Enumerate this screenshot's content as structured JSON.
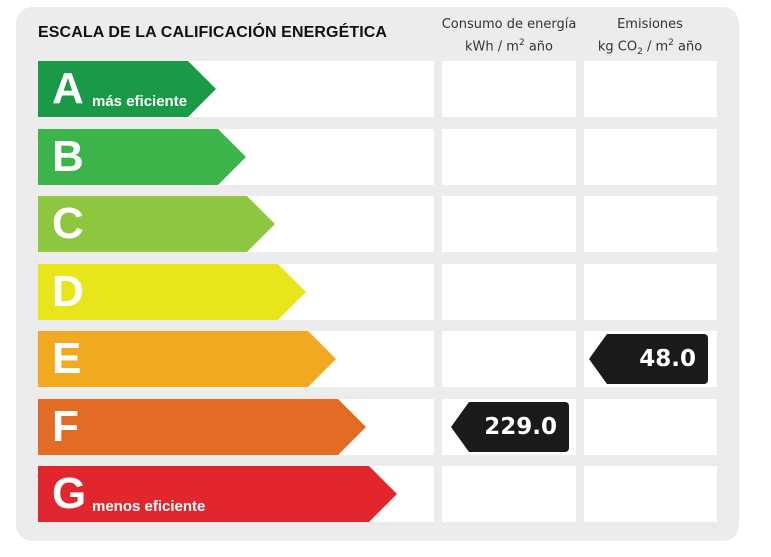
{
  "title": "ESCALA DE LA CALIFICACIÓN ENERGÉTICA",
  "columns": {
    "consumo": {
      "line1": "Consumo de energía",
      "line2_pre": "kWh / m",
      "line2_sup": "2",
      "line2_post": " año"
    },
    "emisiones": {
      "line1": "Emisiones",
      "line2_pre": "kg CO",
      "line2_sub": "2",
      "line2_mid": " / m",
      "line2_sup": "2",
      "line2_post": " año"
    }
  },
  "ratings": [
    {
      "letter": "A",
      "label": "más eficiente",
      "color": "#1a9a47"
    },
    {
      "letter": "B",
      "label": "",
      "color": "#3bb54a"
    },
    {
      "letter": "C",
      "label": "",
      "color": "#8dc63f"
    },
    {
      "letter": "D",
      "label": "",
      "color": "#e8e51a"
    },
    {
      "letter": "E",
      "label": "",
      "color": "#f2a922"
    },
    {
      "letter": "F",
      "label": "",
      "color": "#e36c25"
    },
    {
      "letter": "G",
      "label": "menos eficiente",
      "color": "#e1272d"
    }
  ],
  "consumo_value": {
    "value": "229.0",
    "rating": "F"
  },
  "emisiones_value": {
    "value": "48.0",
    "rating": "E"
  }
}
